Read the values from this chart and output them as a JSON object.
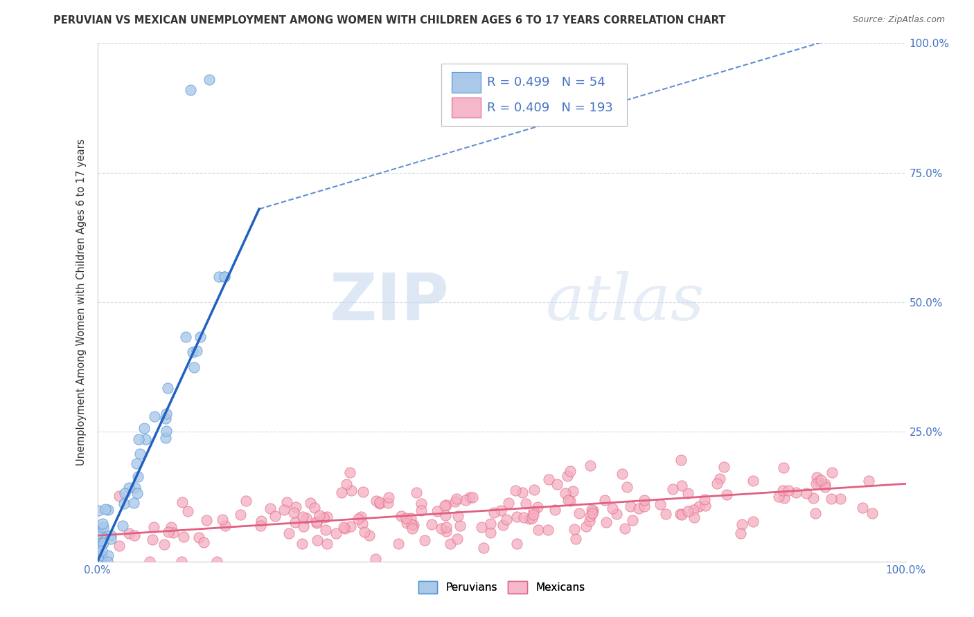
{
  "title": "PERUVIAN VS MEXICAN UNEMPLOYMENT AMONG WOMEN WITH CHILDREN AGES 6 TO 17 YEARS CORRELATION CHART",
  "source": "Source: ZipAtlas.com",
  "ylabel": "Unemployment Among Women with Children Ages 6 to 17 years",
  "xlim": [
    0.0,
    1.0
  ],
  "ylim": [
    0.0,
    1.0
  ],
  "x_tick_labels": [
    "0.0%",
    "100.0%"
  ],
  "y_tick_labels_right": [
    "100.0%",
    "75.0%",
    "50.0%",
    "25.0%"
  ],
  "peruvian_scatter_color": "#aac8e8",
  "peruvian_edge_color": "#4a90d9",
  "mexican_scatter_color": "#f5aec0",
  "mexican_edge_color": "#e06080",
  "peruvian_line_color": "#2060c0",
  "mexican_line_color": "#e06080",
  "legend_box_peruvian": "#aac8e8",
  "legend_box_peruvian_edge": "#4a90d9",
  "legend_box_mexican": "#f5b8ca",
  "legend_box_mexican_edge": "#e06080",
  "R_peruvian": 0.499,
  "N_peruvian": 54,
  "R_mexican": 0.409,
  "N_mexican": 193,
  "watermark_zip": "ZIP",
  "watermark_atlas": "atlas",
  "background_color": "#ffffff",
  "grid_color": "#d0d8e8",
  "title_color": "#333333",
  "source_color": "#666666",
  "tick_color": "#4472c4",
  "ylabel_color": "#333333"
}
